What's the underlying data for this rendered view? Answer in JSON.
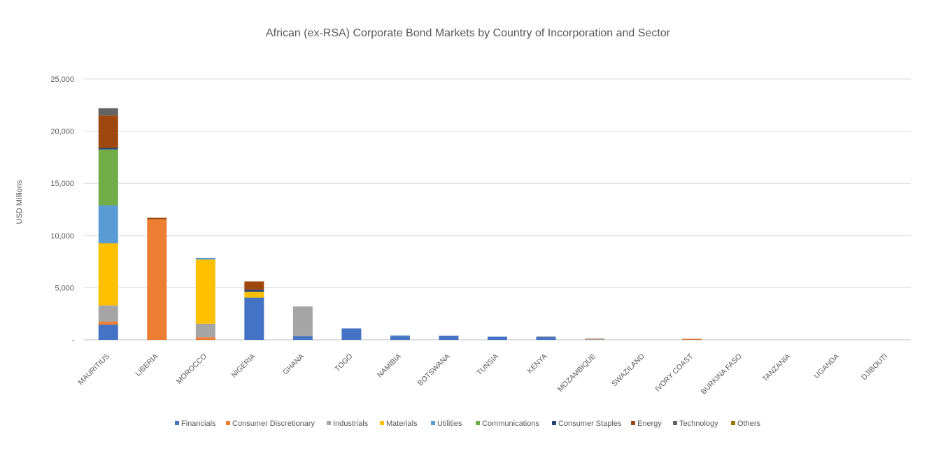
{
  "chart_data": {
    "type": "bar",
    "stacked": true,
    "title": "African (ex-RSA) Corporate Bond Markets by Country of Incorporation and Sector",
    "xlabel": "",
    "ylabel": "USD Millions",
    "ylim": [
      0,
      25000
    ],
    "yticks": [
      0,
      5000,
      10000,
      15000,
      20000,
      25000
    ],
    "ytick_labels": [
      "-",
      "5,000",
      "10,000",
      "15,000",
      "20,000",
      "25,000"
    ],
    "grid": true,
    "legend_position": "bottom",
    "categories": [
      "MAURITIUS",
      "LIBERIA",
      "MOROCCO",
      "NIGERIA",
      "GHANA",
      "TOGO",
      "NAMIBIA",
      "BOTSWANA",
      "TUNSIA",
      "KENYA",
      "MOZAMBIQUE",
      "SWAZILAND",
      "IVORY COAST",
      "BURKINA FASO",
      "TANZANIA",
      "UGANDA",
      "DJIBOUTI"
    ],
    "series": [
      {
        "name": "Financials",
        "color": "#4472C4",
        "values": [
          1450,
          0,
          0,
          4050,
          350,
          1100,
          350,
          400,
          300,
          250,
          0,
          0,
          0,
          0,
          0,
          0,
          0
        ]
      },
      {
        "name": "Consumer Discretionary",
        "color": "#ED7D31",
        "values": [
          300,
          11550,
          250,
          0,
          0,
          0,
          0,
          0,
          0,
          0,
          0,
          0,
          60,
          0,
          0,
          0,
          0
        ]
      },
      {
        "name": "Industrials",
        "color": "#A5A5A5",
        "values": [
          1550,
          0,
          1300,
          0,
          2850,
          0,
          0,
          0,
          0,
          0,
          80,
          0,
          0,
          0,
          0,
          0,
          0
        ]
      },
      {
        "name": "Materials",
        "color": "#FFC000",
        "values": [
          5950,
          0,
          6150,
          550,
          0,
          0,
          0,
          0,
          0,
          0,
          0,
          0,
          0,
          0,
          0,
          0,
          0
        ]
      },
      {
        "name": "Utilities",
        "color": "#5B9BD5",
        "values": [
          3650,
          0,
          150,
          0,
          0,
          0,
          80,
          0,
          0,
          0,
          0,
          0,
          0,
          0,
          0,
          0,
          0
        ]
      },
      {
        "name": "Communications",
        "color": "#70AD47",
        "values": [
          5350,
          0,
          0,
          0,
          0,
          0,
          0,
          0,
          0,
          0,
          0,
          0,
          0,
          0,
          0,
          0,
          0
        ]
      },
      {
        "name": "Consumer Staples",
        "color": "#264478",
        "values": [
          150,
          0,
          0,
          200,
          0,
          0,
          0,
          0,
          0,
          50,
          0,
          0,
          0,
          0,
          0,
          0,
          0
        ]
      },
      {
        "name": "Energy",
        "color": "#9E480E",
        "values": [
          3100,
          150,
          0,
          800,
          0,
          0,
          0,
          0,
          0,
          0,
          30,
          0,
          30,
          0,
          0,
          0,
          0
        ]
      },
      {
        "name": "Technology",
        "color": "#636363",
        "values": [
          700,
          0,
          0,
          0,
          0,
          0,
          0,
          0,
          0,
          0,
          0,
          0,
          0,
          0,
          0,
          0,
          0
        ]
      },
      {
        "name": "Others",
        "color": "#997300",
        "values": [
          0,
          0,
          0,
          0,
          0,
          0,
          0,
          0,
          0,
          0,
          0,
          0,
          0,
          0,
          0,
          0,
          0
        ]
      }
    ]
  }
}
